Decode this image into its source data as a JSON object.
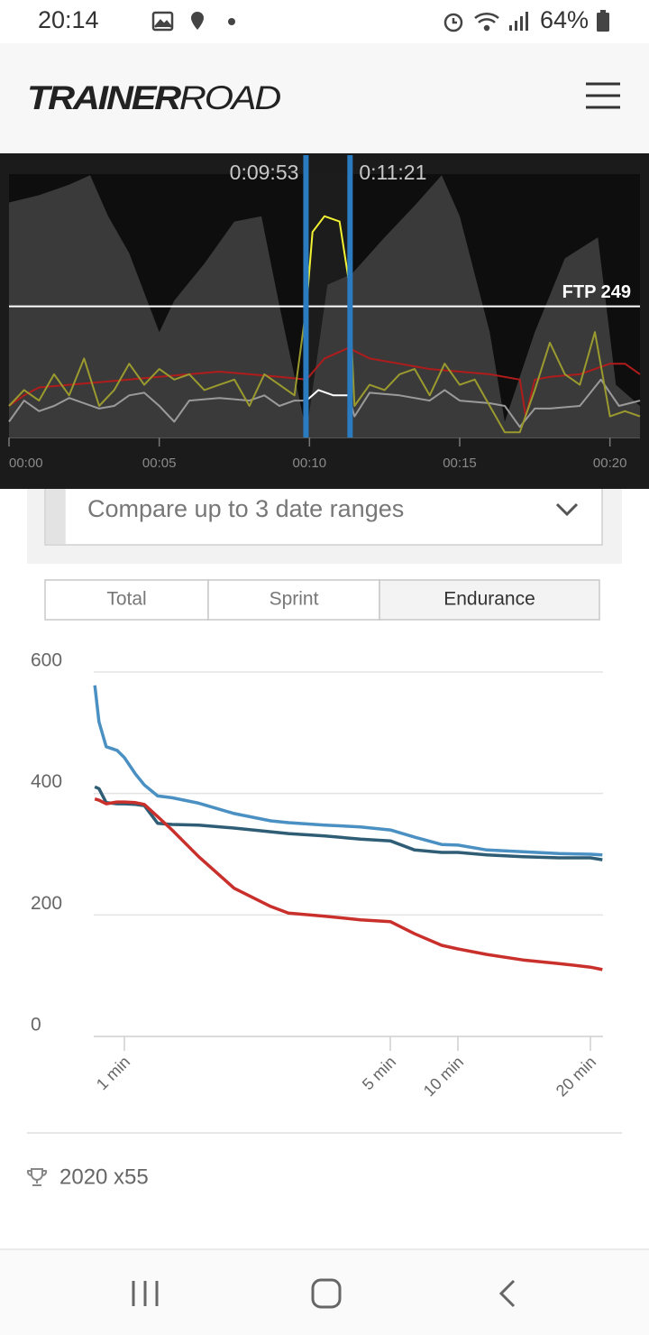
{
  "status_bar": {
    "time": "20:14",
    "battery": "64%"
  },
  "header": {
    "logo_bold": "TRAINER",
    "logo_light": "ROAD"
  },
  "chart_data": [
    {
      "type": "line",
      "xlim": [
        0,
        21
      ],
      "ylim": [
        0,
        500
      ],
      "xticks": [
        {
          "value": 0,
          "label": "00:00"
        },
        {
          "value": 5,
          "label": "00:05"
        },
        {
          "value": 10,
          "label": "00:10"
        },
        {
          "value": 15,
          "label": "00:15"
        },
        {
          "value": 20,
          "label": "00:20"
        }
      ],
      "selection": [
        {
          "value": 9.883,
          "label": "0:09:53"
        },
        {
          "value": 11.35,
          "label": "0:11:21"
        }
      ],
      "selection_color": "#2a7bbf",
      "reference_line": {
        "value": 249,
        "label": "FTP 249"
      },
      "series": [
        {
          "color": "#3a3a3a",
          "area": true,
          "x": [
            0,
            1,
            2,
            2.7,
            3.3,
            4,
            5,
            5.5,
            6.5,
            7.5,
            8.4,
            9,
            9.9,
            10.6,
            11.4,
            12.5,
            13.5,
            14.4,
            15,
            16,
            16.5,
            17.5,
            18.5,
            19.6,
            20.2,
            21
          ],
          "values": [
            446,
            460,
            480,
            498,
            420,
            350,
            200,
            260,
            330,
            410,
            420,
            250,
            10,
            290,
            310,
            380,
            440,
            498,
            420,
            200,
            30,
            200,
            340,
            380,
            100,
            60
          ]
        },
        {
          "color": "#9a9a9a",
          "highlight_color": "#ffffff",
          "x": [
            0,
            0.5,
            1,
            1.5,
            2,
            3,
            3.5,
            4,
            4.5,
            5,
            5.5,
            6,
            7,
            8,
            8.5,
            9,
            9.5,
            9.9,
            10.3,
            10.8,
            11.3,
            11.5,
            12,
            13,
            14,
            14.5,
            15,
            16,
            16.5,
            17,
            17.5,
            18,
            19,
            19.7,
            20.3,
            21
          ],
          "values": [
            30,
            70,
            50,
            60,
            75,
            55,
            60,
            80,
            85,
            60,
            30,
            70,
            75,
            70,
            80,
            60,
            70,
            70,
            90,
            80,
            80,
            40,
            85,
            80,
            70,
            90,
            70,
            65,
            60,
            20,
            55,
            55,
            60,
            110,
            60,
            70
          ]
        },
        {
          "color": "#b01c1c",
          "x": [
            0,
            0.5,
            1,
            2,
            3,
            4,
            5,
            6,
            7,
            8,
            9,
            9.9,
            10.5,
            11.3,
            12,
            13,
            14,
            15,
            16,
            17,
            17.2,
            17.5,
            18,
            19,
            20,
            20.5,
            21
          ],
          "values": [
            60,
            80,
            95,
            100,
            105,
            110,
            115,
            120,
            125,
            120,
            115,
            110,
            150,
            170,
            150,
            140,
            130,
            125,
            120,
            110,
            40,
            110,
            115,
            120,
            140,
            140,
            120
          ]
        },
        {
          "color": "#9a9a2e",
          "highlight_color": "#f2f233",
          "x": [
            0,
            0.5,
            1,
            1.5,
            2,
            2.5,
            3,
            3.5,
            4,
            4.5,
            5,
            5.5,
            6,
            6.5,
            7,
            7.5,
            8,
            8.5,
            9,
            9.5,
            9.9,
            10.1,
            10.5,
            11,
            11.3,
            11.5,
            12,
            12.5,
            13,
            13.5,
            14,
            14.5,
            15,
            15.5,
            16,
            16.5,
            17,
            17.5,
            18,
            18.5,
            19,
            19.5,
            20,
            20.5,
            21
          ],
          "values": [
            60,
            90,
            70,
            120,
            80,
            150,
            60,
            90,
            140,
            100,
            130,
            110,
            120,
            90,
            100,
            110,
            60,
            120,
            100,
            80,
            250,
            390,
            420,
            410,
            300,
            60,
            100,
            90,
            120,
            130,
            80,
            140,
            100,
            110,
            60,
            10,
            10,
            90,
            180,
            120,
            100,
            200,
            40,
            50,
            40
          ]
        }
      ]
    },
    {
      "type": "line",
      "x": [
        3,
        11,
        25,
        46,
        60,
        70,
        78,
        90,
        103,
        127,
        159,
        192,
        208,
        241,
        273,
        300,
        408,
        528,
        600,
        731,
        894,
        1057,
        1200,
        1257
      ],
      "xlim": [
        1,
        1260
      ],
      "xticks": [
        {
          "value": 60,
          "label": "1 min"
        },
        {
          "value": 300,
          "label": "5 min"
        },
        {
          "value": 600,
          "label": "10 min"
        },
        {
          "value": 1200,
          "label": "20 min"
        }
      ],
      "ylim": [
        0,
        600
      ],
      "yticks": [
        0,
        200,
        400,
        600
      ],
      "grid": true,
      "series": [
        {
          "color": "#4a90c2",
          "values": [
            578,
            518,
            477,
            471,
            459,
            432,
            414,
            396,
            393,
            384,
            367,
            355,
            352,
            348,
            345,
            340,
            328,
            316,
            315,
            307,
            304,
            301,
            300,
            299
          ]
        },
        {
          "color": "#2e5d75",
          "values": [
            411,
            408,
            385,
            383,
            383,
            382,
            380,
            351,
            349,
            348,
            343,
            337,
            334,
            330,
            325,
            322,
            307,
            303,
            303,
            299,
            296,
            294,
            294,
            291
          ]
        },
        {
          "color": "#c9302c",
          "values": [
            391,
            389,
            383,
            386,
            386,
            385,
            382,
            362,
            340,
            296,
            244,
            214,
            203,
            198,
            192,
            189,
            169,
            150,
            144,
            135,
            126,
            120,
            114,
            110
          ]
        }
      ]
    }
  ],
  "compare_dropdown": {
    "label": "Compare up to 3 date ranges"
  },
  "tabs": {
    "items": [
      "Total",
      "Sprint",
      "Endurance"
    ],
    "selected": 2
  },
  "footer": {
    "achievement": "2020 x55"
  }
}
